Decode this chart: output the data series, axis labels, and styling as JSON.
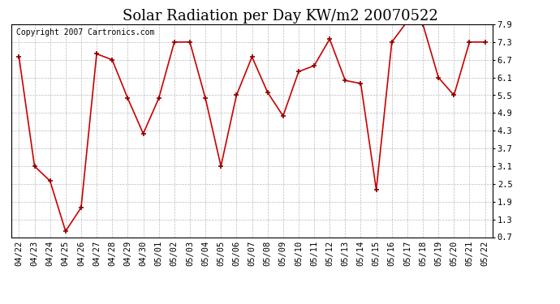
{
  "title": "Solar Radiation per Day KW/m2 20070522",
  "copyright": "Copyright 2007 Cartronics.com",
  "dates": [
    "04/22",
    "04/23",
    "04/24",
    "04/25",
    "04/26",
    "04/27",
    "04/28",
    "04/29",
    "04/30",
    "05/01",
    "05/02",
    "05/03",
    "05/04",
    "05/05",
    "05/06",
    "05/07",
    "05/08",
    "05/09",
    "05/10",
    "05/11",
    "05/12",
    "05/13",
    "05/14",
    "05/15",
    "05/16",
    "05/17",
    "05/18",
    "05/19",
    "05/20",
    "05/21",
    "05/22"
  ],
  "values": [
    6.8,
    3.1,
    2.6,
    0.9,
    1.7,
    6.9,
    6.7,
    5.4,
    4.2,
    5.4,
    7.3,
    7.3,
    5.4,
    3.1,
    5.5,
    6.8,
    5.6,
    4.8,
    6.3,
    6.5,
    7.4,
    6.0,
    5.9,
    2.3,
    7.3,
    8.0,
    7.9,
    6.1,
    5.5,
    7.3,
    7.3
  ],
  "line_color": "#cc0000",
  "marker_color": "#880000",
  "bg_color": "#ffffff",
  "plot_bg_color": "#ffffff",
  "grid_color": "#bbbbbb",
  "yticks": [
    0.7,
    1.3,
    1.9,
    2.5,
    3.1,
    3.7,
    4.3,
    4.9,
    5.5,
    6.1,
    6.7,
    7.3,
    7.9
  ],
  "ymin": 0.7,
  "ymax": 7.9,
  "title_fontsize": 13,
  "copyright_fontsize": 7,
  "tick_fontsize": 7.5
}
